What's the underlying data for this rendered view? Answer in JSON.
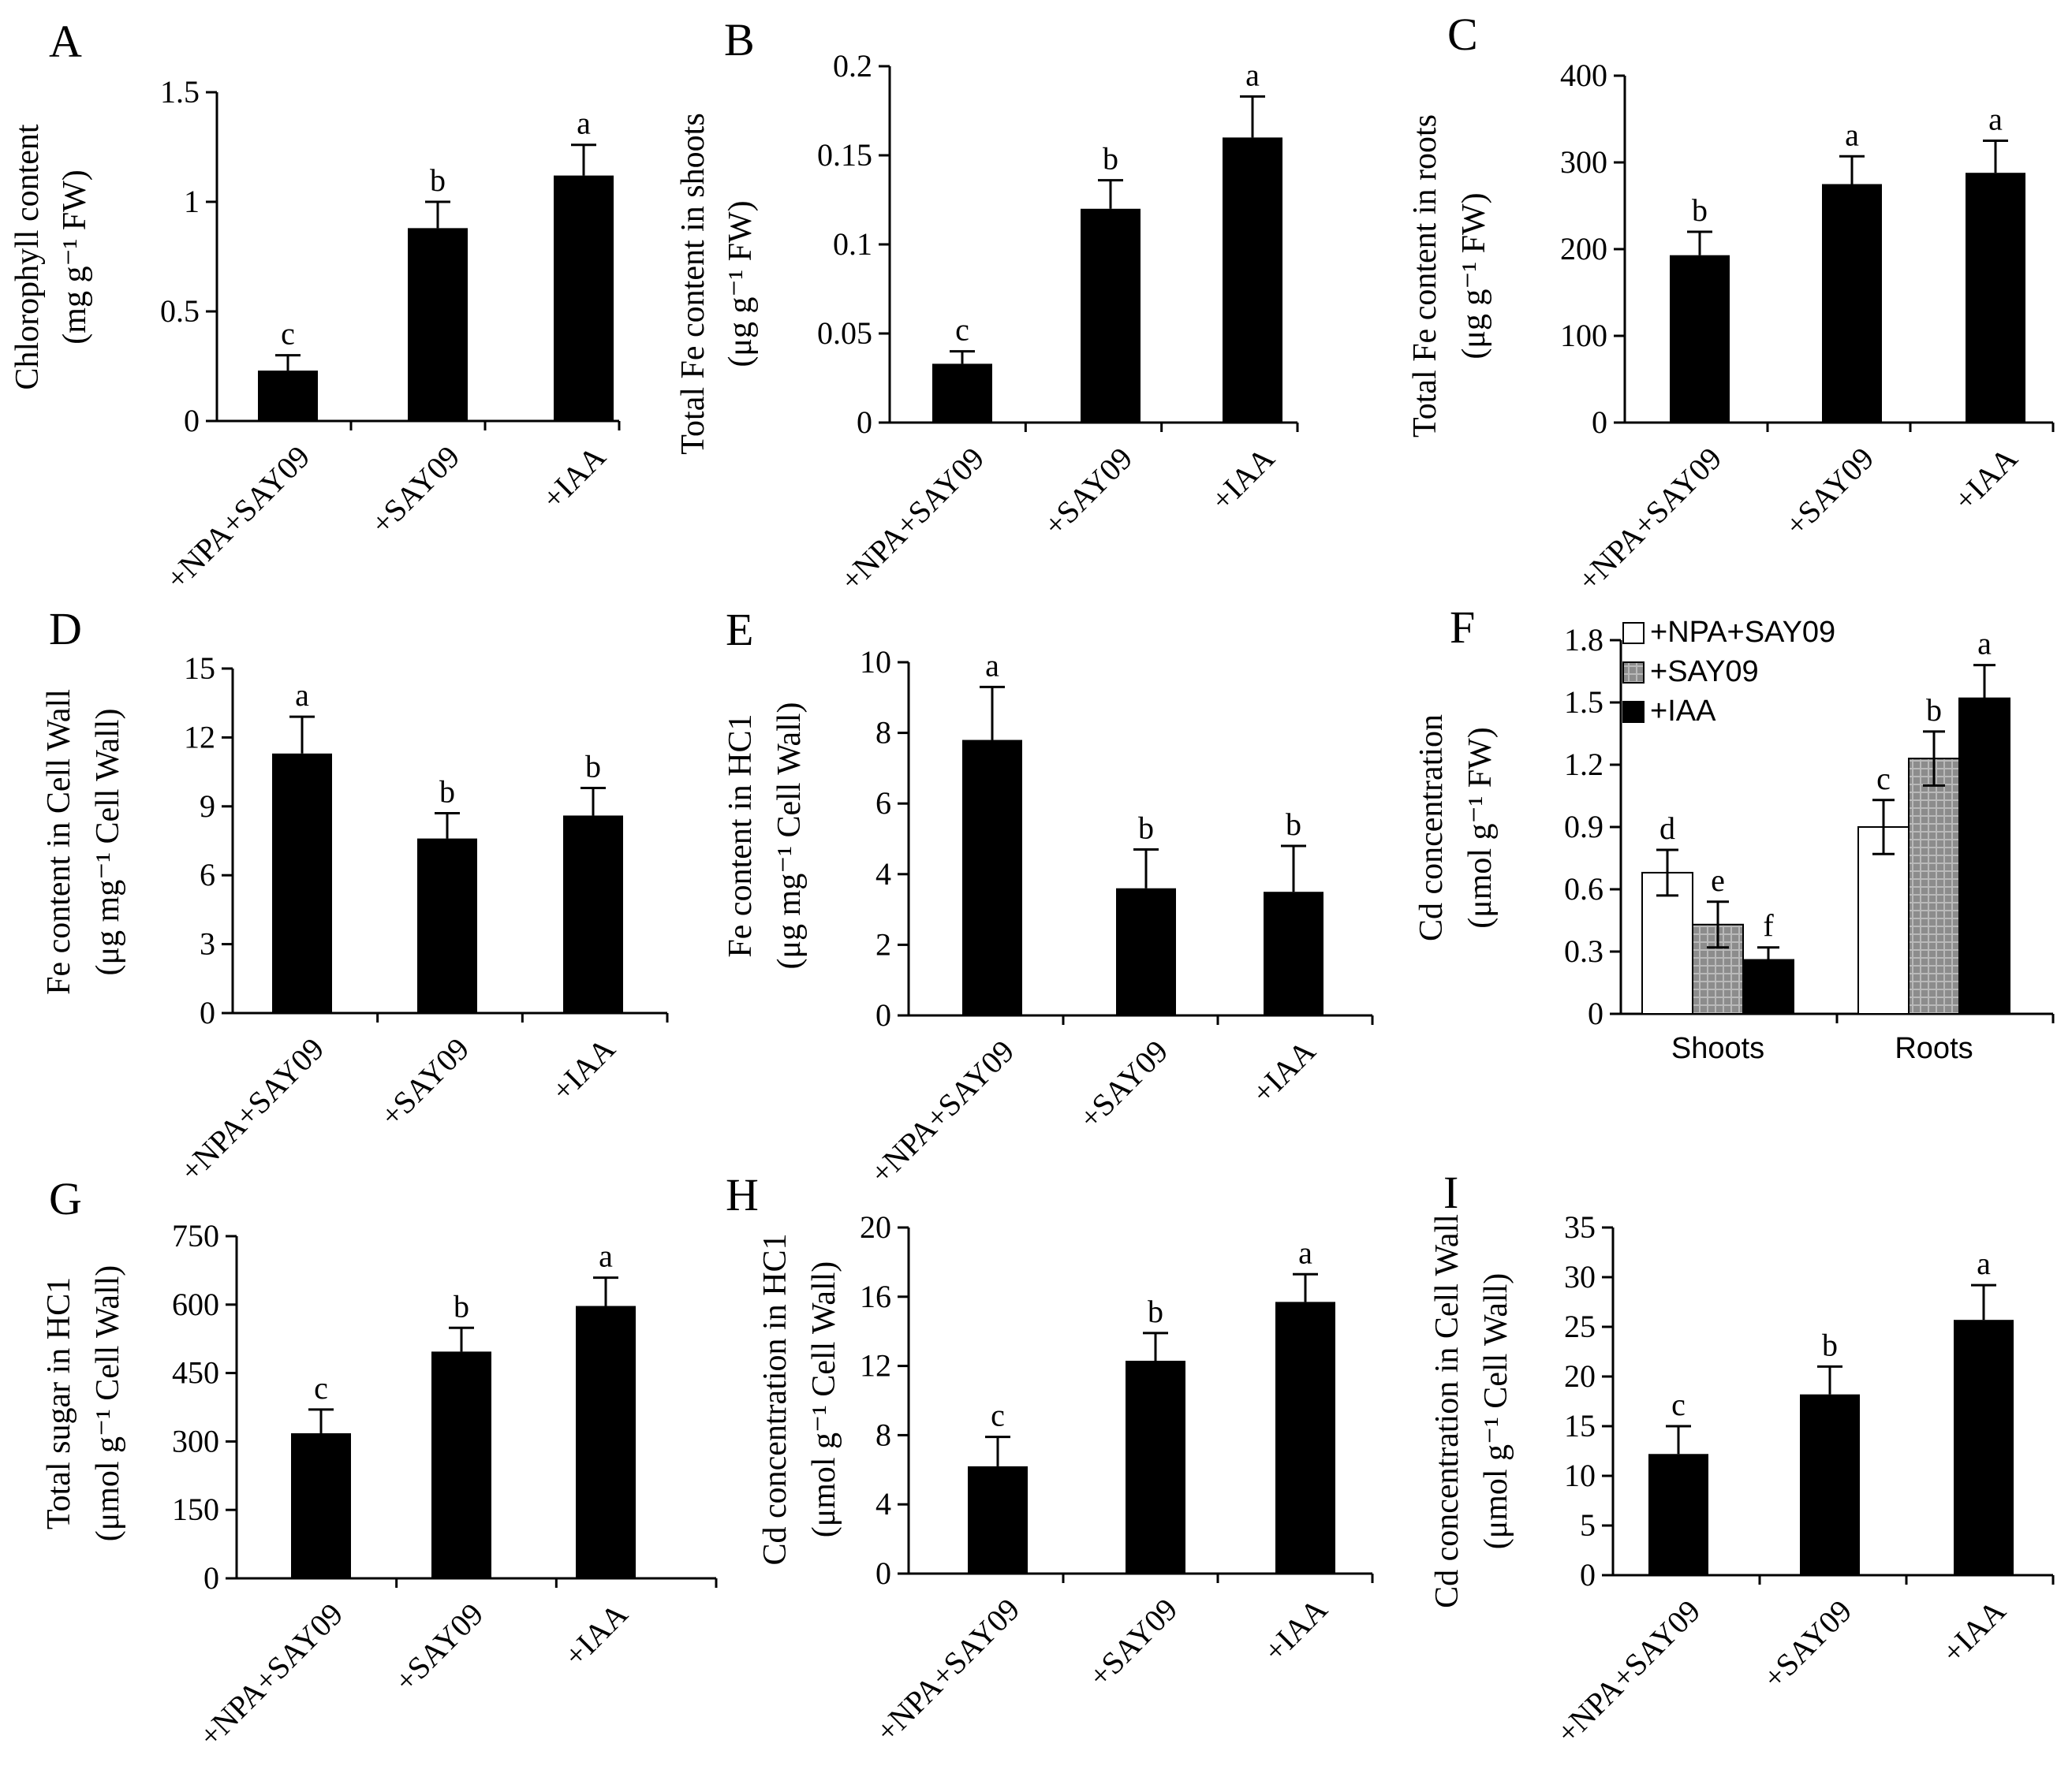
{
  "figure": {
    "styles": {
      "bar_fill": "#000000",
      "open_fill": "#ffffff",
      "hatch_fill": "#8c8c8c",
      "axis_color": "#000000"
    }
  },
  "chart_data": [
    {
      "panel": "A",
      "type": "bar",
      "categories": [
        "+NPA+SAY09",
        "+SAY09",
        "+IAA"
      ],
      "values": [
        0.23,
        0.88,
        1.12
      ],
      "errors": [
        0.07,
        0.12,
        0.14
      ],
      "letters": [
        "c",
        "b",
        "a"
      ],
      "ylabel_line1": "Chlorophyll content",
      "ylabel_line2": "(mg g⁻¹ FW)",
      "ylim": [
        0,
        1.5
      ],
      "ticks": [
        0,
        0.5,
        1,
        1.5
      ],
      "tick_labels": [
        "0",
        "0.5",
        "1",
        "1.5"
      ]
    },
    {
      "panel": "B",
      "type": "bar",
      "categories": [
        "+NPA+SAY09",
        "+SAY09",
        "+IAA"
      ],
      "values": [
        0.033,
        0.12,
        0.16
      ],
      "errors": [
        0.007,
        0.016,
        0.023
      ],
      "letters": [
        "c",
        "b",
        "a"
      ],
      "ylabel_line1": "Total Fe content in shoots",
      "ylabel_line2": "(μg g⁻¹ FW)",
      "ylim": [
        0,
        0.2
      ],
      "ticks": [
        0,
        0.05,
        0.1,
        0.15,
        0.2
      ],
      "tick_labels": [
        "0",
        "0.05",
        "0.1",
        "0.15",
        "0.2"
      ]
    },
    {
      "panel": "C",
      "type": "bar",
      "categories": [
        "+NPA+SAY09",
        "+SAY09",
        "+IAA"
      ],
      "values": [
        193,
        275,
        288
      ],
      "errors": [
        27,
        32,
        37
      ],
      "letters": [
        "b",
        "a",
        "a"
      ],
      "ylabel_line1": "Total Fe content in roots",
      "ylabel_line2": "(μg g⁻¹ FW)",
      "ylim": [
        0,
        400
      ],
      "ticks": [
        0,
        100,
        200,
        300,
        400
      ],
      "tick_labels": [
        "0",
        "100",
        "200",
        "300",
        "400"
      ]
    },
    {
      "panel": "D",
      "type": "bar",
      "categories": [
        "+NPA+SAY09",
        "+SAY09",
        "+IAA"
      ],
      "values": [
        11.3,
        7.6,
        8.6
      ],
      "errors": [
        1.6,
        1.1,
        1.2
      ],
      "letters": [
        "a",
        "b",
        "b"
      ],
      "ylabel_line1": "Fe content in Cell Wall",
      "ylabel_line2": "(μg mg⁻¹ Cell Wall)",
      "ylim": [
        0,
        15
      ],
      "ticks": [
        0,
        3,
        6,
        9,
        12,
        15
      ],
      "tick_labels": [
        "0",
        "3",
        "6",
        "9",
        "12",
        "15"
      ]
    },
    {
      "panel": "E",
      "type": "bar",
      "categories": [
        "+NPA+SAY09",
        "+SAY09",
        "+IAA"
      ],
      "values": [
        7.8,
        3.6,
        3.5
      ],
      "errors": [
        1.5,
        1.1,
        1.3
      ],
      "letters": [
        "a",
        "b",
        "b"
      ],
      "ylabel_line1": "Fe content in HC1",
      "ylabel_line2": "(μg mg⁻¹ Cell Wall)",
      "ylim": [
        0,
        10
      ],
      "ticks": [
        0,
        2,
        4,
        6,
        8,
        10
      ],
      "tick_labels": [
        "0",
        "2",
        "4",
        "6",
        "8",
        "10"
      ]
    },
    {
      "panel": "F",
      "type": "grouped-bar",
      "groups": [
        "Shoots",
        "Roots"
      ],
      "series": [
        {
          "name": "+NPA+SAY09",
          "values": [
            0.68,
            0.9
          ],
          "errors": [
            0.11,
            0.13
          ],
          "letters": [
            "d",
            "c"
          ]
        },
        {
          "name": "+SAY09",
          "values": [
            0.43,
            1.23
          ],
          "errors": [
            0.11,
            0.13
          ],
          "letters": [
            "e",
            "b"
          ]
        },
        {
          "name": "+IAA",
          "values": [
            0.26,
            1.52
          ],
          "errors": [
            0.06,
            0.16
          ],
          "letters": [
            "f",
            "a"
          ]
        }
      ],
      "ylabel_line1": "Cd concentration",
      "ylabel_line2": "(μmol g⁻¹ FW)",
      "ylim": [
        0,
        1.8
      ],
      "ticks": [
        0,
        0.3,
        0.6,
        0.9,
        1.2,
        1.5,
        1.8
      ],
      "tick_labels": [
        "0",
        "0.3",
        "0.6",
        "0.9",
        "1.2",
        "1.5",
        "1.8"
      ],
      "legend_position": "top-left"
    },
    {
      "panel": "G",
      "type": "bar",
      "categories": [
        "+NPA+SAY09",
        "+SAY09",
        "+IAA"
      ],
      "values": [
        318,
        497,
        597
      ],
      "errors": [
        52,
        52,
        62
      ],
      "letters": [
        "c",
        "b",
        "a"
      ],
      "ylabel_line1": "Total sugar in HC1",
      "ylabel_line2": "(μmol g⁻¹ Cell Wall)",
      "ylim": [
        0,
        750
      ],
      "ticks": [
        0,
        150,
        300,
        450,
        600,
        750
      ],
      "tick_labels": [
        "0",
        "150",
        "300",
        "450",
        "600",
        "750"
      ]
    },
    {
      "panel": "H",
      "type": "bar",
      "categories": [
        "+NPA+SAY09",
        "+SAY09",
        "+IAA"
      ],
      "values": [
        6.2,
        12.3,
        15.7
      ],
      "errors": [
        1.7,
        1.6,
        1.6
      ],
      "letters": [
        "c",
        "b",
        "a"
      ],
      "ylabel_line1": "Cd concentration in HC1",
      "ylabel_line2": "(μmol g⁻¹ Cell Wall)",
      "ylim": [
        0,
        20
      ],
      "ticks": [
        0,
        4,
        8,
        12,
        16,
        20
      ],
      "tick_labels": [
        "0",
        "4",
        "8",
        "12",
        "16",
        "20"
      ]
    },
    {
      "panel": "I",
      "type": "bar",
      "categories": [
        "+NPA+SAY09",
        "+SAY09",
        "+IAA"
      ],
      "values": [
        12.2,
        18.2,
        25.7
      ],
      "errors": [
        2.8,
        2.8,
        3.5
      ],
      "letters": [
        "c",
        "b",
        "a"
      ],
      "ylabel_line1": "Cd concentration in Cell Wall",
      "ylabel_line2": "(μmol g⁻¹ Cell Wall)",
      "ylim": [
        0,
        35
      ],
      "ticks": [
        0,
        5,
        10,
        15,
        20,
        25,
        30,
        35
      ],
      "tick_labels": [
        "0",
        "5",
        "10",
        "15",
        "20",
        "25",
        "30",
        "35"
      ]
    }
  ]
}
